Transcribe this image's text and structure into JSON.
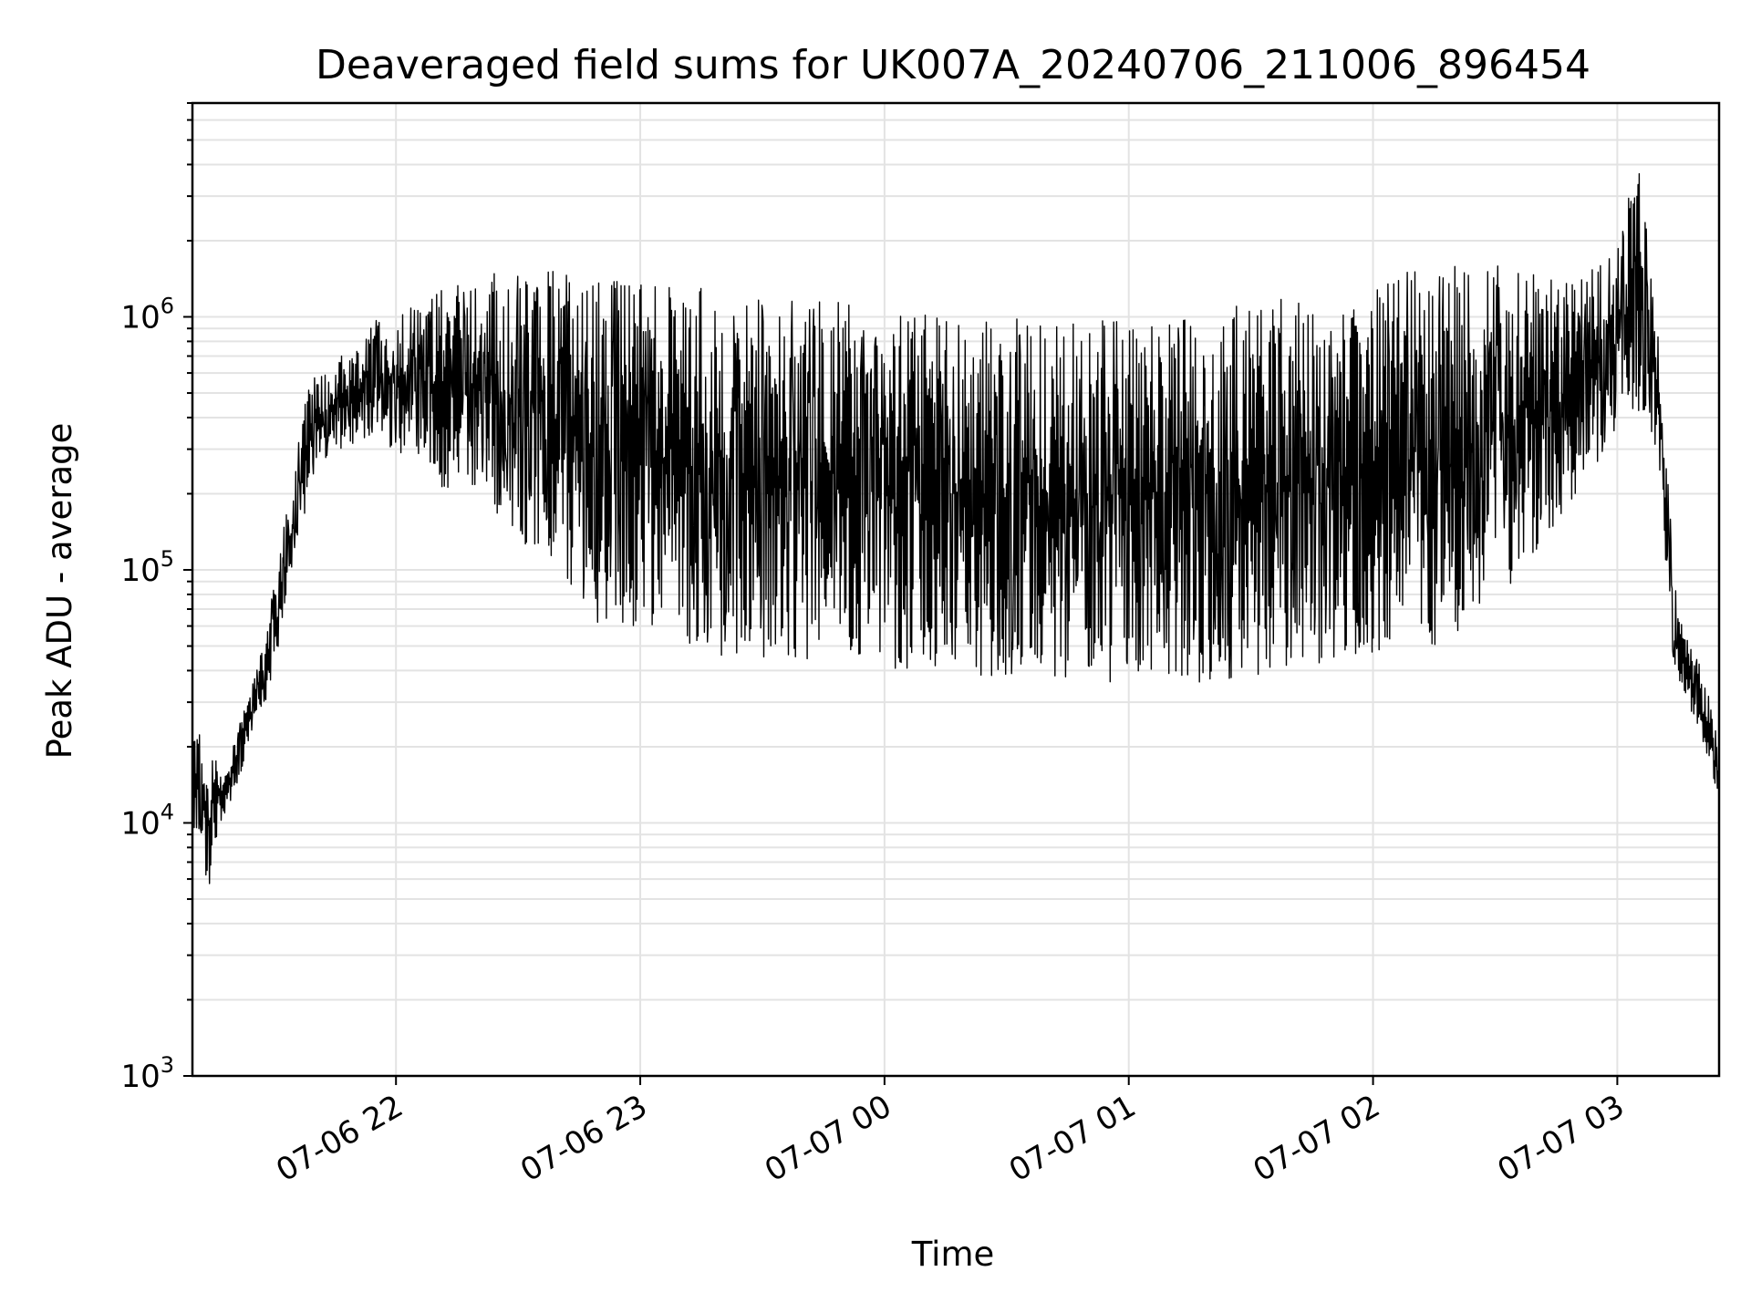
{
  "chart_data": {
    "type": "line",
    "title": "Deaveraged field sums for UK007A_20240706_211006_896454",
    "xlabel": "Time",
    "ylabel": "Peak ADU - average",
    "yscale": "log",
    "ylim": [
      1000,
      7000000
    ],
    "xlim": [
      "2024-07-06 21:10:00",
      "2024-07-07 03:25:00"
    ],
    "grid": true,
    "x_ticks": [
      "07-06 22",
      "07-06 23",
      "07-07 00",
      "07-07 01",
      "07-07 02",
      "07-07 03"
    ],
    "y_ticks": [
      {
        "base": "10",
        "exp": "3"
      },
      {
        "base": "10",
        "exp": "4"
      },
      {
        "base": "10",
        "exp": "5"
      },
      {
        "base": "10",
        "exp": "6"
      }
    ],
    "series": [
      {
        "color": "#000000",
        "x": [
          "2024-07-06 21:10:00",
          "2024-07-06 21:12:00",
          "2024-07-06 21:14:00",
          "2024-07-06 21:16:00",
          "2024-07-06 21:18:00",
          "2024-07-06 21:20:00",
          "2024-07-06 21:22:00",
          "2024-07-06 21:25:00",
          "2024-07-06 21:28:00",
          "2024-07-06 21:31:00",
          "2024-07-06 21:34:00",
          "2024-07-06 21:37:00",
          "2024-07-06 21:40:00",
          "2024-07-06 21:43:00",
          "2024-07-06 21:46:00",
          "2024-07-06 21:49:00",
          "2024-07-06 21:52:00",
          "2024-07-06 21:55:00",
          "2024-07-06 22:00:00",
          "2024-07-06 22:10:00",
          "2024-07-06 22:20:00",
          "2024-07-06 22:30:00",
          "2024-07-06 22:40:00",
          "2024-07-06 22:50:00",
          "2024-07-06 23:00:00",
          "2024-07-06 23:15:00",
          "2024-07-06 23:30:00",
          "2024-07-06 23:45:00",
          "2024-07-07 00:00:00",
          "2024-07-07 00:20:00",
          "2024-07-07 00:40:00",
          "2024-07-07 01:00:00",
          "2024-07-07 01:20:00",
          "2024-07-07 01:40:00",
          "2024-07-07 02:00:00",
          "2024-07-07 02:15:00",
          "2024-07-07 02:30:00",
          "2024-07-07 02:45:00",
          "2024-07-07 03:00:00",
          "2024-07-07 03:05:00",
          "2024-07-07 03:10:00",
          "2024-07-07 03:12:00",
          "2024-07-07 03:14:00",
          "2024-07-07 03:16:00",
          "2024-07-07 03:18:00",
          "2024-07-07 03:20:00",
          "2024-07-07 03:22:00",
          "2024-07-07 03:25:00"
        ],
        "low": [
          9000,
          8000,
          5000,
          9000,
          11000,
          12000,
          15000,
          22000,
          30000,
          45000,
          80000,
          150000,
          250000,
          280000,
          300000,
          300000,
          300000,
          300000,
          300000,
          200000,
          200000,
          130000,
          100000,
          60000,
          60000,
          45000,
          45000,
          40000,
          40000,
          38000,
          36000,
          36000,
          36000,
          40000,
          45000,
          50000,
          70000,
          150000,
          350000,
          400000,
          300000,
          80000,
          40000,
          32000,
          28000,
          22000,
          18000,
          12000
        ],
        "high": [
          25000,
          23000,
          20000,
          18000,
          16000,
          20000,
          28000,
          38000,
          55000,
          110000,
          200000,
          450000,
          600000,
          650000,
          700000,
          700000,
          800000,
          1000000,
          1100000,
          1300000,
          1500000,
          1600000,
          1500000,
          1400000,
          1400000,
          1300000,
          1200000,
          1200000,
          1100000,
          1000000,
          1000000,
          1000000,
          1100000,
          1200000,
          1400000,
          1600000,
          1600000,
          1400000,
          1800000,
          4500000,
          900000,
          300000,
          90000,
          60000,
          50000,
          45000,
          35000,
          20000
        ]
      }
    ]
  }
}
